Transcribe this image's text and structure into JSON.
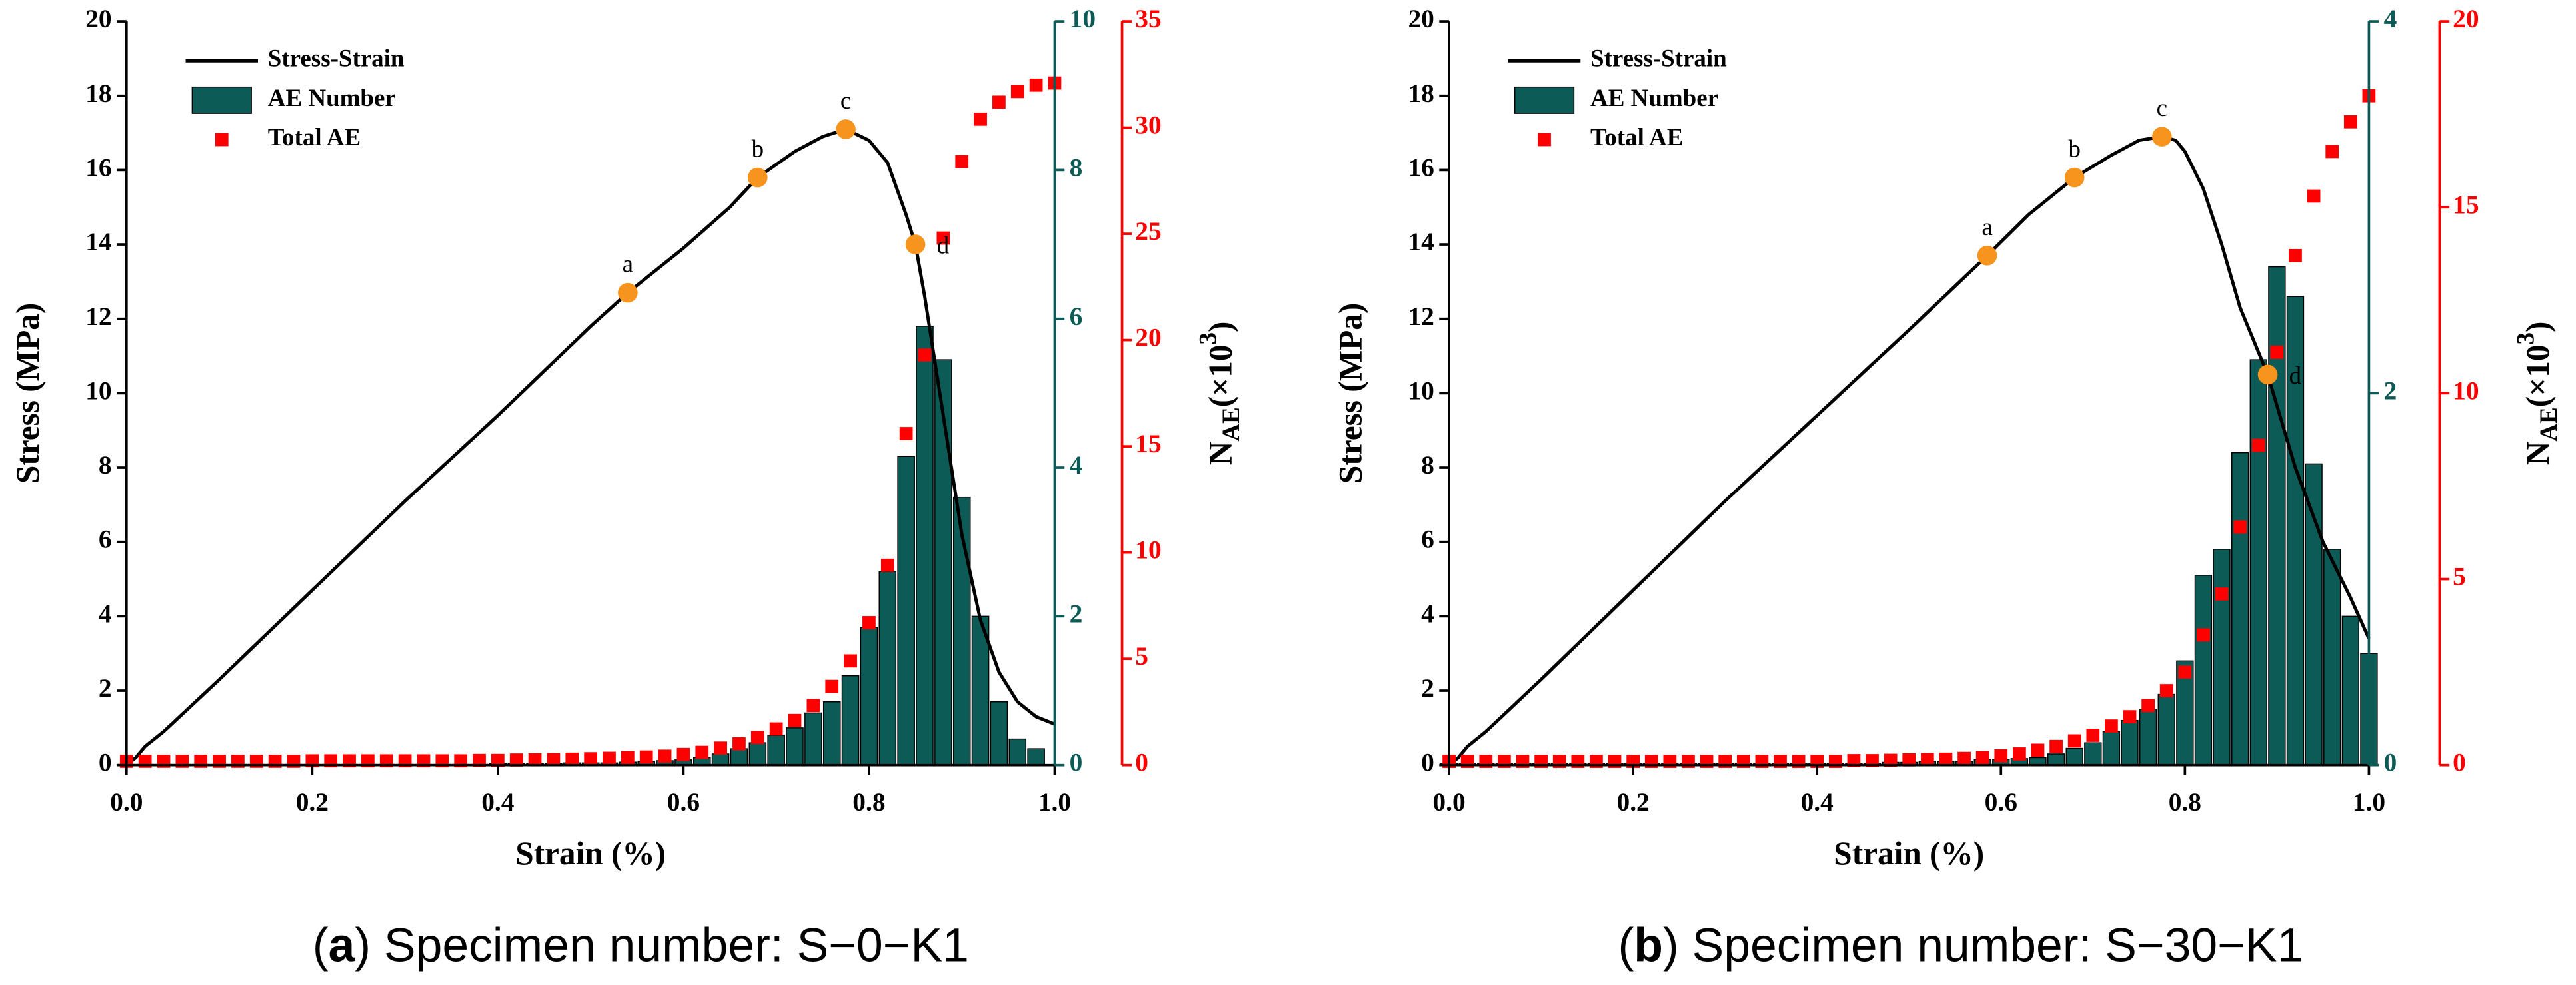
{
  "chart_data": [
    {
      "type": "bar",
      "ylabel": "Stress  (MPa)",
      "xlabel": "Strain  (%)",
      "y3label": {
        "main": "N",
        "sub": "AE",
        "rest": "(×10",
        "sup": "3",
        "end": ")"
      },
      "caption": [
        "(",
        "a",
        ") Specimen number: S−0−K1"
      ],
      "xlim": [
        0,
        1
      ],
      "xticks": [
        {
          "value": 0,
          "label": "0.0"
        },
        {
          "value": 0.2,
          "label": "0.2"
        },
        {
          "value": 0.4,
          "label": "0.4"
        },
        {
          "value": 0.6,
          "label": "0.6"
        },
        {
          "value": 0.8,
          "label": "0.8"
        },
        {
          "value": 1,
          "label": "1.0"
        }
      ],
      "ylim": [
        0,
        20
      ],
      "yticks": [
        0,
        2,
        4,
        6,
        8,
        10,
        12,
        14,
        16,
        18,
        20
      ],
      "y2lim": [
        0,
        10
      ],
      "y2ticks": [
        0,
        2,
        4,
        6,
        8,
        10
      ],
      "y3lim": [
        0,
        35
      ],
      "y3ticks": [
        0,
        5,
        10,
        15,
        20,
        25,
        30,
        35
      ],
      "x": [
        0,
        0.02,
        0.04,
        0.06,
        0.08,
        0.1,
        0.12,
        0.14,
        0.16,
        0.18,
        0.2,
        0.22,
        0.24,
        0.26,
        0.28,
        0.3,
        0.32,
        0.34,
        0.36,
        0.38,
        0.4,
        0.42,
        0.44,
        0.46,
        0.48,
        0.5,
        0.52,
        0.54,
        0.56,
        0.58,
        0.6,
        0.62,
        0.64,
        0.66,
        0.68,
        0.7,
        0.72,
        0.74,
        0.76,
        0.78,
        0.8,
        0.82,
        0.84,
        0.86,
        0.88,
        0.9,
        0.92,
        0.94,
        0.96,
        0.98,
        1.0
      ],
      "series": [
        {
          "name": "Stress-Strain",
          "type": "line",
          "color": "#000000",
          "x": [
            0,
            0.01,
            0.02,
            0.04,
            0.1,
            0.2,
            0.3,
            0.4,
            0.5,
            0.54,
            0.6,
            0.65,
            0.68,
            0.72,
            0.75,
            0.775,
            0.8,
            0.82,
            0.84,
            0.85,
            0.86,
            0.87,
            0.88,
            0.9,
            0.92,
            0.94,
            0.96,
            0.98,
            1.0
          ],
          "values": [
            0,
            0.2,
            0.5,
            0.9,
            2.3,
            4.7,
            7.1,
            9.4,
            11.8,
            12.7,
            13.9,
            15.0,
            15.8,
            16.5,
            16.9,
            17.1,
            16.8,
            16.2,
            14.8,
            14.0,
            12.6,
            11.0,
            9.4,
            6.2,
            3.9,
            2.5,
            1.7,
            1.3,
            1.1
          ]
        },
        {
          "name": "AE Number",
          "type": "bar",
          "axis": "y2",
          "color": "#0d5b57",
          "values": [
            0.01,
            0.01,
            0.01,
            0.01,
            0.01,
            0.01,
            0.01,
            0.01,
            0.01,
            0.01,
            0.01,
            0.01,
            0.01,
            0.01,
            0.01,
            0.01,
            0.01,
            0.01,
            0.01,
            0.01,
            0.02,
            0.02,
            0.02,
            0.02,
            0.03,
            0.03,
            0.03,
            0.04,
            0.05,
            0.06,
            0.07,
            0.1,
            0.15,
            0.22,
            0.3,
            0.4,
            0.5,
            0.7,
            0.85,
            1.2,
            1.85,
            2.6,
            4.15,
            5.9,
            5.45,
            3.6,
            2.0,
            0.85,
            0.35,
            0.22,
            null
          ]
        },
        {
          "name": "Total AE",
          "type": "scatter",
          "axis": "y3",
          "color": "#ff0000",
          "values": [
            0.18,
            0.18,
            0.18,
            0.18,
            0.18,
            0.18,
            0.18,
            0.18,
            0.18,
            0.18,
            0.2,
            0.2,
            0.2,
            0.2,
            0.2,
            0.2,
            0.2,
            0.2,
            0.2,
            0.22,
            0.22,
            0.24,
            0.25,
            0.26,
            0.28,
            0.3,
            0.32,
            0.35,
            0.38,
            0.42,
            0.5,
            0.6,
            0.8,
            1.0,
            1.3,
            1.7,
            2.1,
            2.8,
            3.7,
            4.9,
            6.7,
            9.4,
            15.6,
            19.3,
            24.8,
            28.4,
            30.4,
            31.2,
            31.7,
            32.0,
            32.1
          ]
        }
      ],
      "points": {
        "color": "#f7941d",
        "labels": [
          "a",
          "b",
          "c",
          "d"
        ],
        "x": [
          0.54,
          0.68,
          0.775,
          0.85
        ],
        "y": [
          12.7,
          15.8,
          17.1,
          14.0
        ]
      }
    },
    {
      "type": "bar",
      "ylabel": "Stress  (MPa)",
      "xlabel": "Strain  (%)",
      "y3label": {
        "main": "N",
        "sub": "AE",
        "rest": "(×10",
        "sup": "3",
        "end": ")"
      },
      "caption": [
        "(",
        "b",
        ") Specimen number: S−30−K1"
      ],
      "xlim": [
        0,
        1
      ],
      "xticks": [
        {
          "value": 0,
          "label": "0.0"
        },
        {
          "value": 0.2,
          "label": "0.2"
        },
        {
          "value": 0.4,
          "label": "0.4"
        },
        {
          "value": 0.6,
          "label": "0.6"
        },
        {
          "value": 0.8,
          "label": "0.8"
        },
        {
          "value": 1,
          "label": "1.0"
        }
      ],
      "ylim": [
        0,
        20
      ],
      "yticks": [
        0,
        2,
        4,
        6,
        8,
        10,
        12,
        14,
        16,
        18,
        20
      ],
      "y2lim": [
        0,
        4
      ],
      "y2ticks": [
        0,
        2,
        4
      ],
      "y3lim": [
        0,
        20
      ],
      "y3ticks": [
        0,
        5,
        10,
        15,
        20
      ],
      "x": [
        0,
        0.02,
        0.04,
        0.06,
        0.08,
        0.1,
        0.12,
        0.14,
        0.16,
        0.18,
        0.2,
        0.22,
        0.24,
        0.26,
        0.28,
        0.3,
        0.32,
        0.34,
        0.36,
        0.38,
        0.4,
        0.42,
        0.44,
        0.46,
        0.48,
        0.5,
        0.52,
        0.54,
        0.56,
        0.58,
        0.6,
        0.62,
        0.64,
        0.66,
        0.68,
        0.7,
        0.72,
        0.74,
        0.76,
        0.78,
        0.8,
        0.82,
        0.84,
        0.86,
        0.88,
        0.9,
        0.92,
        0.94,
        0.96,
        0.98,
        1.0
      ],
      "series": [
        {
          "name": "Stress-Strain",
          "type": "line",
          "color": "#000000",
          "x": [
            0,
            0.01,
            0.02,
            0.04,
            0.1,
            0.2,
            0.3,
            0.4,
            0.5,
            0.585,
            0.63,
            0.68,
            0.72,
            0.75,
            0.775,
            0.79,
            0.8,
            0.82,
            0.84,
            0.86,
            0.89,
            0.92,
            0.95,
            0.98,
            1.0
          ],
          "values": [
            0,
            0.2,
            0.5,
            0.9,
            2.3,
            4.7,
            7.1,
            9.4,
            11.7,
            13.7,
            14.8,
            15.8,
            16.4,
            16.8,
            16.9,
            16.8,
            16.5,
            15.5,
            14.0,
            12.3,
            10.5,
            8.0,
            6.0,
            4.5,
            3.4
          ]
        },
        {
          "name": "AE Number",
          "type": "bar",
          "axis": "y2",
          "color": "#0d5b57",
          "values": [
            0.01,
            0.01,
            0.01,
            0.01,
            0.01,
            0.01,
            0.01,
            0.01,
            0.01,
            0.01,
            0.01,
            0.01,
            0.01,
            0.01,
            0.01,
            0.01,
            0.01,
            0.01,
            0.01,
            0.01,
            0.01,
            0.01,
            0.01,
            0.01,
            0.015,
            0.015,
            0.02,
            0.02,
            0.02,
            0.03,
            0.03,
            0.035,
            0.04,
            0.06,
            0.09,
            0.12,
            0.18,
            0.24,
            0.3,
            0.38,
            0.56,
            1.02,
            1.16,
            1.68,
            2.18,
            2.68,
            2.52,
            1.62,
            1.16,
            0.8,
            0.6
          ]
        },
        {
          "name": "Total AE",
          "type": "scatter",
          "axis": "y3",
          "color": "#ff0000",
          "values": [
            0.1,
            0.1,
            0.1,
            0.1,
            0.1,
            0.1,
            0.1,
            0.1,
            0.1,
            0.1,
            0.1,
            0.1,
            0.1,
            0.1,
            0.1,
            0.1,
            0.1,
            0.1,
            0.1,
            0.1,
            0.1,
            0.1,
            0.12,
            0.12,
            0.13,
            0.14,
            0.15,
            0.16,
            0.18,
            0.2,
            0.25,
            0.3,
            0.4,
            0.5,
            0.65,
            0.8,
            1.05,
            1.3,
            1.6,
            2.0,
            2.5,
            3.5,
            4.6,
            6.4,
            8.6,
            11.1,
            13.7,
            15.3,
            16.5,
            17.3,
            18.0
          ]
        }
      ],
      "points": {
        "color": "#f7941d",
        "labels": [
          "a",
          "b",
          "c",
          "d"
        ],
        "x": [
          0.585,
          0.68,
          0.775,
          0.89
        ],
        "y": [
          13.7,
          15.8,
          16.9,
          10.5
        ]
      }
    }
  ]
}
